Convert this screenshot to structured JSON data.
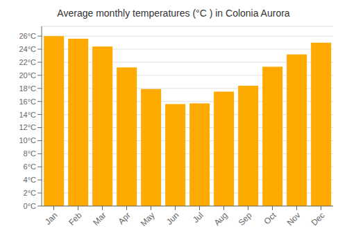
{
  "chart_data": {
    "type": "bar",
    "title": "Average monthly temperatures (°C ) in Colonia Aurora",
    "categories": [
      "Jan",
      "Feb",
      "Mar",
      "Apr",
      "May",
      "Jun",
      "Jul",
      "Aug",
      "Sep",
      "Oct",
      "Nov",
      "Dec"
    ],
    "values": [
      26.0,
      25.6,
      24.4,
      21.2,
      17.9,
      15.6,
      15.7,
      17.5,
      18.4,
      21.3,
      23.2,
      25.0
    ],
    "color": "#FFAA00",
    "ylim": [
      0,
      27.5
    ],
    "yticks": [
      {
        "value": 0,
        "label": "0°C"
      },
      {
        "value": 2,
        "label": "2°C"
      },
      {
        "value": 4,
        "label": "4°C"
      },
      {
        "value": 6,
        "label": "6°C"
      },
      {
        "value": 8,
        "label": "8°C"
      },
      {
        "value": 10,
        "label": "10°C"
      },
      {
        "value": 12,
        "label": "12°C"
      },
      {
        "value": 14,
        "label": "14°C"
      },
      {
        "value": 16,
        "label": "16°C"
      },
      {
        "value": 18,
        "label": "18°C"
      },
      {
        "value": 20,
        "label": "20°C"
      },
      {
        "value": 22,
        "label": "22°C"
      },
      {
        "value": 24,
        "label": "24°C"
      },
      {
        "value": 26,
        "label": "26°C"
      }
    ],
    "grid": true
  }
}
